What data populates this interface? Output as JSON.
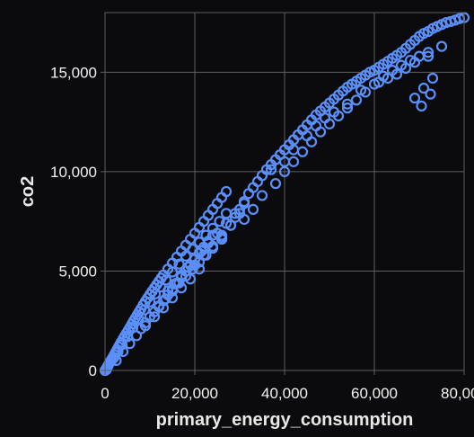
{
  "theme": {
    "background": "#0b0b0d",
    "grid_color": "#5f5f5f",
    "point_color": "#5b8ff9"
  },
  "chart_data": {
    "type": "scatter",
    "title": "",
    "xlabel": "primary_energy_consumption",
    "ylabel": "co2",
    "xlim": [
      0,
      80000
    ],
    "ylim": [
      0,
      18000
    ],
    "x_ticks": [
      0,
      20000,
      40000,
      60000,
      80000
    ],
    "x_tick_labels": [
      "0",
      "20,000",
      "40,000",
      "60,000",
      "80,000"
    ],
    "y_ticks": [
      0,
      5000,
      10000,
      15000
    ],
    "y_tick_labels": [
      "0",
      "5,000",
      "10,000",
      "15,000"
    ],
    "grid": true,
    "legend": "none",
    "series": [
      {
        "x": [
          0,
          200,
          400,
          600,
          800,
          1000,
          1200,
          1500,
          1800,
          2100,
          2400,
          2700,
          3000,
          3300,
          3600,
          4000,
          4400,
          4800,
          5200,
          5600,
          6000,
          6400,
          6800,
          7200,
          7600,
          8000,
          8500,
          9000,
          9500,
          10000,
          10500,
          11000,
          11500,
          12000,
          12500,
          13000,
          14000,
          15000,
          16000,
          17000,
          18000,
          19000,
          20000,
          21000,
          22000,
          23000,
          24000,
          25000,
          26000,
          27000,
          300,
          700,
          1400,
          2000,
          2900,
          3800,
          5000,
          6200,
          7500,
          8800,
          10000,
          11200,
          12400,
          13600,
          15000,
          16500,
          18000,
          19500,
          21000,
          22500,
          24000,
          25500,
          27000,
          8000,
          9000,
          10000,
          11000,
          12000,
          13500,
          15000,
          16500,
          18000,
          19500,
          21000,
          22500,
          24000,
          26000,
          2500,
          4000,
          5500,
          7000,
          9000,
          11000,
          13000,
          15000,
          17000,
          19000,
          21000,
          14000,
          15500,
          17000,
          20000,
          22000,
          24000,
          26000,
          28000,
          29000,
          30000,
          31000,
          32000,
          33000,
          34000,
          35000,
          36000,
          37000,
          38000,
          39000,
          40000,
          41000,
          42000,
          43000,
          44000,
          45000,
          46000,
          47000,
          48000,
          49000,
          50000,
          51000,
          52000,
          53000,
          54000,
          55000,
          56000,
          57000,
          58000,
          59000,
          60000,
          61000,
          62000,
          63000,
          64000,
          65000,
          66000,
          67000,
          68000,
          69000,
          70000,
          71000,
          72000,
          73000,
          74000,
          75000,
          76000,
          77000,
          78000,
          79000,
          80000,
          31000,
          33000,
          35000,
          38000,
          40000,
          42000,
          44000,
          46000,
          48000,
          50000,
          52000,
          54000,
          56000,
          58000,
          60000,
          62000,
          64000,
          66000,
          68000,
          70000,
          72000,
          75000,
          69000,
          71000,
          73000,
          70500,
          72500,
          26000,
          28000,
          30000,
          37000,
          40000,
          42000,
          45000,
          47000,
          49000,
          51000,
          54000,
          57000,
          61000,
          63000,
          65000,
          67000,
          69000,
          72000,
          17000,
          18500,
          20000,
          21500,
          23000,
          25000,
          27000,
          29000,
          31000,
          12000,
          13000,
          14000,
          15000,
          16000,
          17000,
          18000,
          19000,
          20000,
          21000,
          22000,
          23000,
          24000
        ],
        "y": [
          0,
          60,
          140,
          220,
          300,
          380,
          460,
          560,
          680,
          800,
          930,
          1050,
          1180,
          1300,
          1420,
          1580,
          1730,
          1880,
          2030,
          2180,
          2340,
          2500,
          2650,
          2800,
          2950,
          3100,
          3300,
          3480,
          3650,
          3820,
          3980,
          4150,
          4310,
          4480,
          4640,
          4800,
          5100,
          5400,
          5700,
          6000,
          6300,
          6600,
          6900,
          7200,
          7500,
          7800,
          8100,
          8400,
          8700,
          9000,
          40,
          230,
          480,
          650,
          950,
          1300,
          1700,
          2150,
          2600,
          3050,
          3450,
          3850,
          4200,
          4550,
          4950,
          5350,
          5750,
          6100,
          6450,
          6800,
          7150,
          7500,
          7900,
          2100,
          2400,
          2700,
          2950,
          3250,
          3600,
          4000,
          4400,
          4750,
          5100,
          5450,
          5800,
          6150,
          6600,
          500,
          950,
          1350,
          1750,
          2250,
          2700,
          3150,
          3650,
          4150,
          4600,
          5100,
          4000,
          4350,
          4700,
          5300,
          5800,
          6250,
          6700,
          7300,
          7700,
          8100,
          8500,
          8900,
          9200,
          9500,
          9800,
          10100,
          10350,
          10600,
          10850,
          11100,
          11350,
          11600,
          11850,
          12100,
          12350,
          12600,
          12850,
          13050,
          13250,
          13450,
          13650,
          13850,
          14050,
          14250,
          14400,
          14550,
          14700,
          14850,
          15000,
          15100,
          15250,
          15400,
          15550,
          15700,
          15850,
          16000,
          16200,
          16400,
          16600,
          16800,
          16950,
          17050,
          17200,
          17300,
          17400,
          17500,
          17550,
          17620,
          17700,
          17750,
          7600,
          8100,
          8800,
          9400,
          10000,
          10500,
          11000,
          11500,
          12000,
          12400,
          12800,
          13200,
          13600,
          14000,
          14400,
          14800,
          15100,
          15350,
          15600,
          15800,
          16000,
          16300,
          13700,
          14200,
          14700,
          13300,
          13900,
          6800,
          7300,
          7900,
          10100,
          10500,
          11100,
          11800,
          12300,
          12700,
          13000,
          13400,
          14100,
          14500,
          14700,
          14900,
          15200,
          15500,
          15800,
          4800,
          5200,
          5600,
          6000,
          6400,
          6900,
          7400,
          7900,
          8400,
          3200,
          3500,
          3800,
          4100,
          4400,
          4700,
          5000,
          5300,
          5600,
          5900,
          6200,
          6500,
          6800
        ]
      }
    ]
  }
}
